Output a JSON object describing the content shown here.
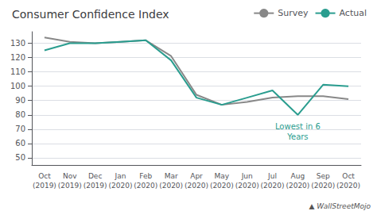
{
  "chart_data": {
    "type": "line",
    "title": "Consumer Confidence Index",
    "categories": [
      "Oct\n(2019)",
      "Nov\n(2019)",
      "Dec\n(2019)",
      "Jan\n(2020)",
      "Feb\n(2020)",
      "Mar\n(2020)",
      "Apr\n(2020)",
      "May\n(2020)",
      "Jun\n(2020)",
      "Jul\n(2020)",
      "Aug\n(2020)",
      "Sep\n(2020)",
      "Oct\n(2020)"
    ],
    "series": [
      {
        "name": "Survey",
        "color": "#888888",
        "values": [
          134,
          131,
          130,
          131,
          132,
          121,
          94,
          87,
          89,
          92,
          93,
          93,
          91
        ]
      },
      {
        "name": "Actual",
        "color": "#2a9d8f",
        "values": [
          125,
          130,
          130,
          131,
          132,
          118,
          92,
          87,
          92,
          97,
          80,
          101,
          100
        ],
        "annotation": "Lowest in 6\nYears"
      }
    ],
    "ylim": [
      45,
      138
    ],
    "yticks": [
      50,
      60,
      70,
      80,
      90,
      100,
      110,
      120,
      130
    ],
    "grid": true,
    "legend": "upper right",
    "watermark": "▲ WallStreetMojo"
  }
}
